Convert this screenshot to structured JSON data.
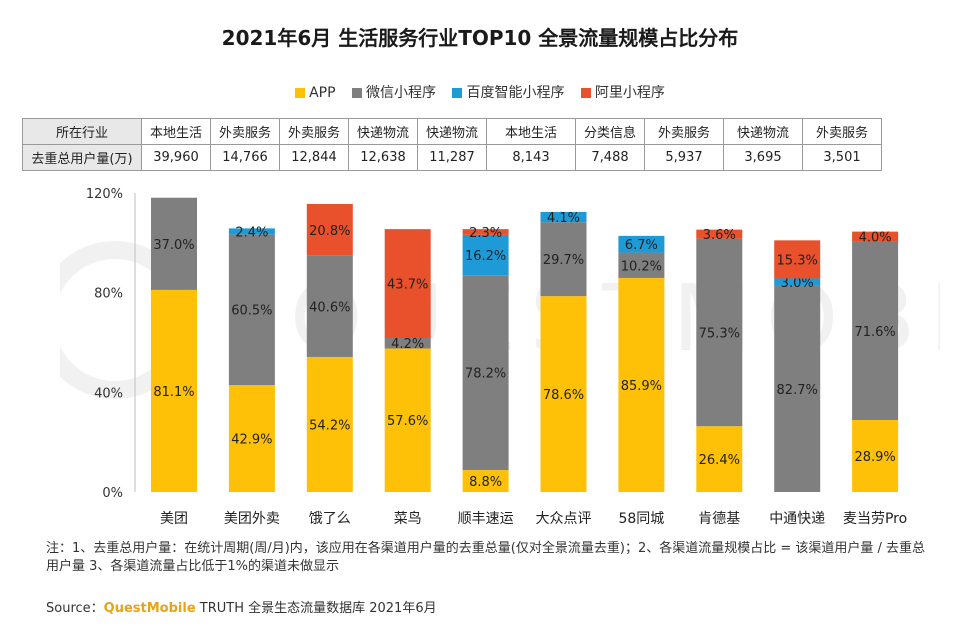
{
  "title": "2021年6月 生活服务行业TOP10 全景流量规模占比分布",
  "legend": [
    {
      "label": "APP",
      "color": "#FFC107"
    },
    {
      "label": "微信小程序",
      "color": "#7F7F7F"
    },
    {
      "label": "百度智能小程序",
      "color": "#1E9BD7"
    },
    {
      "label": "阿里小程序",
      "color": "#E8512B"
    }
  ],
  "table": {
    "row1_header": "所在行业",
    "row2_header": "去重总用户量(万)",
    "industries": [
      "本地生活",
      "外卖服务",
      "外卖服务",
      "快递物流",
      "快递物流",
      "本地生活",
      "分类信息",
      "外卖服务",
      "快递物流",
      "外卖服务"
    ],
    "users": [
      "39,960",
      "14,766",
      "12,844",
      "12,638",
      "11,287",
      "8,143",
      "7,488",
      "5,937",
      "3,695",
      "3,501"
    ]
  },
  "chart_data": {
    "type": "bar",
    "stacked": true,
    "categories": [
      "美团",
      "美团外卖",
      "饿了么",
      "菜鸟",
      "顺丰速运",
      "大众点评",
      "58同城",
      "肯德基",
      "中通快递",
      "麦当劳Pro"
    ],
    "ylim": [
      0,
      120
    ],
    "yticks": [
      "0%",
      "40%",
      "80%",
      "120%"
    ],
    "series": [
      {
        "name": "APP",
        "color": "#FFC107",
        "values": [
          81.1,
          42.9,
          54.2,
          57.6,
          8.8,
          78.6,
          85.9,
          26.4,
          0,
          28.9
        ],
        "labels": [
          "81.1%",
          "42.9%",
          "54.2%",
          "57.6%",
          "8.8%",
          "78.6%",
          "85.9%",
          "26.4%",
          "",
          "28.9%"
        ]
      },
      {
        "name": "微信小程序",
        "color": "#7F7F7F",
        "values": [
          37.0,
          60.5,
          40.6,
          4.2,
          78.2,
          29.7,
          10.2,
          75.3,
          82.7,
          71.6
        ],
        "labels": [
          "37.0%",
          "60.5%",
          "40.6%",
          "4.2%",
          "78.2%",
          "29.7%",
          "10.2%",
          "75.3%",
          "82.7%",
          "71.6%"
        ]
      },
      {
        "name": "百度智能小程序",
        "color": "#1E9BD7",
        "values": [
          0,
          2.4,
          0,
          0,
          16.2,
          4.1,
          6.7,
          0,
          3.0,
          0
        ],
        "labels": [
          "",
          "2.4%",
          "",
          "",
          "16.2%",
          "4.1%",
          "6.7%",
          "",
          "3.0%",
          ""
        ]
      },
      {
        "name": "阿里小程序",
        "color": "#E8512B",
        "values": [
          0,
          0,
          20.8,
          43.7,
          2.3,
          0,
          0,
          3.6,
          15.3,
          4.0
        ],
        "labels": [
          "",
          "",
          "20.8%",
          "43.7%",
          "2.3%",
          "",
          "",
          "3.6%",
          "15.3%",
          "4.0%"
        ]
      }
    ]
  },
  "note": "注：1、去重总用户量：在统计周期(周/月)内，该应用在各渠道用户量的去重总量(仅对全景流量去重)；2、各渠道流量规模占比 = 该渠道用户量 / 去重总用户量 3、各渠道流量占比低于1%的渠道未做显示",
  "source_prefix": "Source：",
  "source_brand": "QuestMobile",
  "source_suffix": " TRUTH 全景生态流量数据库 2021年6月",
  "watermark": "QUESTMOBILE"
}
